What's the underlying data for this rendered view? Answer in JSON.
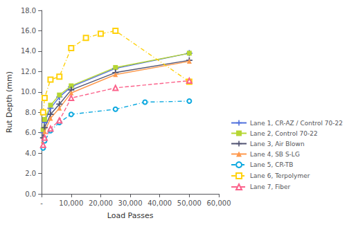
{
  "chart_data": {
    "type": "line",
    "xlabel": "Load Passes",
    "ylabel": "Rut Depth (mm)",
    "xlim": [
      0,
      60000
    ],
    "ylim": [
      0.0,
      18.0
    ],
    "xticks": [
      {
        "value": 0,
        "label": "-"
      },
      {
        "value": 10000,
        "label": "10,000"
      },
      {
        "value": 20000,
        "label": "20,000"
      },
      {
        "value": 30000,
        "label": "30,000"
      },
      {
        "value": 40000,
        "label": "40,000"
      },
      {
        "value": 50000,
        "label": "50,000"
      },
      {
        "value": 60000,
        "label": "60,000"
      }
    ],
    "yticks": [
      {
        "value": 0.0,
        "label": "0.0"
      },
      {
        "value": 2.0,
        "label": "2.0"
      },
      {
        "value": 4.0,
        "label": "4.0"
      },
      {
        "value": 6.0,
        "label": "6.0"
      },
      {
        "value": 8.0,
        "label": "8.0"
      },
      {
        "value": 10.0,
        "label": "10.0"
      },
      {
        "value": 12.0,
        "label": "12.0"
      },
      {
        "value": 14.0,
        "label": "14.0"
      },
      {
        "value": 16.0,
        "label": "16.0"
      },
      {
        "value": 18.0,
        "label": "18.0"
      }
    ],
    "grid": false,
    "legend": "lower right",
    "series": [
      {
        "name": "Lane 1, CR-AZ / Control 70-22",
        "marker": "plus",
        "line_style": "solid",
        "x": [
          500,
          1000,
          3000,
          6000,
          10000,
          25000,
          50000
        ],
        "values": [
          6.0,
          7.0,
          8.4,
          9.5,
          10.5,
          12.3,
          13.8
        ]
      },
      {
        "name": "Lane 2, Control 70-22",
        "marker": "square",
        "line_style": "solid",
        "x": [
          500,
          1000,
          3000,
          6000,
          10000,
          25000,
          50000
        ],
        "values": [
          6.3,
          7.3,
          8.7,
          9.7,
          10.6,
          12.4,
          13.8
        ]
      },
      {
        "name": "Lane 3, Air Blown",
        "marker": "plus",
        "line_style": "solid",
        "x": [
          500,
          1000,
          3000,
          6000,
          10000,
          25000,
          50000
        ],
        "values": [
          5.5,
          6.5,
          7.8,
          8.8,
          10.2,
          11.9,
          13.1
        ]
      },
      {
        "name": "Lane 4, SB S-LG",
        "marker": "triangle",
        "line_style": "solid",
        "x": [
          500,
          1000,
          3000,
          6000,
          10000,
          25000,
          50000
        ],
        "values": [
          5.2,
          6.1,
          7.4,
          8.4,
          9.9,
          11.7,
          13.0
        ]
      },
      {
        "name": "Lane 5, CR-TB",
        "marker": "circle-open",
        "line_style": "dashdot",
        "x": [
          500,
          1000,
          3000,
          6000,
          10000,
          25000,
          35000,
          50000
        ],
        "values": [
          4.5,
          5.2,
          6.2,
          7.0,
          7.8,
          8.3,
          9.0,
          9.1
        ]
      },
      {
        "name": "Lane 6, Terpolymer",
        "marker": "square-open",
        "line_style": "dashdot",
        "x": [
          500,
          1000,
          3000,
          6000,
          10000,
          15000,
          20000,
          25000,
          50000
        ],
        "values": [
          8.0,
          9.4,
          11.2,
          11.5,
          14.3,
          15.3,
          15.7,
          16.0,
          11.0
        ]
      },
      {
        "name": "Lane 7, Fiber",
        "marker": "triangle-open",
        "line_style": "dashed",
        "x": [
          500,
          1000,
          3000,
          6000,
          10000,
          25000,
          50000
        ],
        "values": [
          4.8,
          5.5,
          6.4,
          7.2,
          9.4,
          10.4,
          11.1
        ]
      }
    ]
  }
}
